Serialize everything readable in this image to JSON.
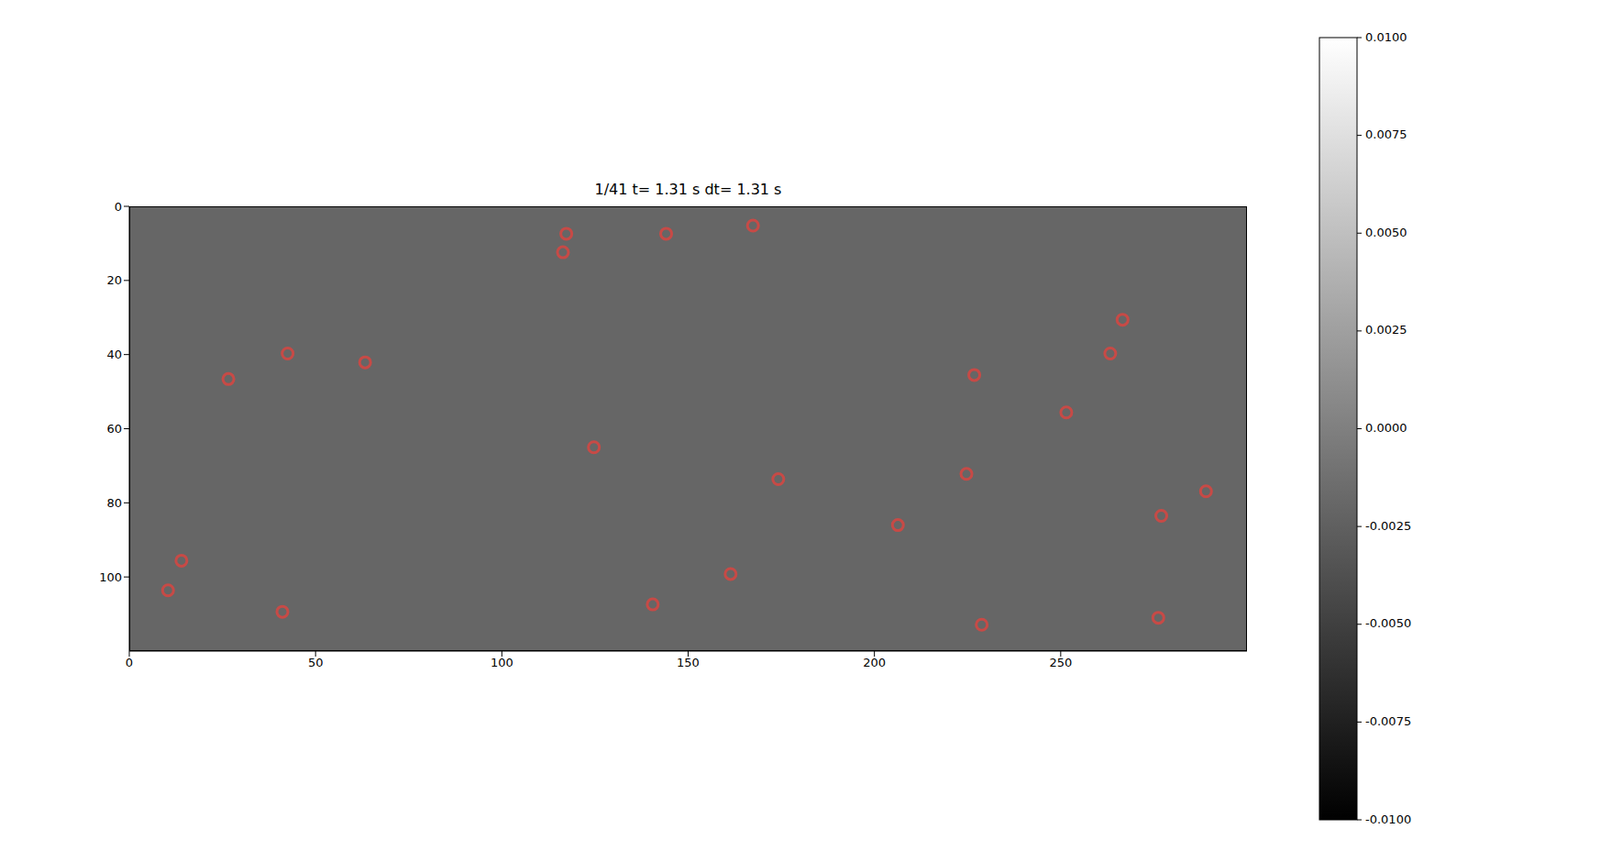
{
  "chart_data": {
    "type": "scatter",
    "title": "1/41  t= 1.31 s dt= 1.31 s",
    "xlim": [
      0,
      300
    ],
    "xticks": [
      0,
      50,
      100,
      150,
      200,
      250
    ],
    "ylim": [
      0,
      120
    ],
    "yticks": [
      0,
      20,
      40,
      60,
      80,
      100
    ],
    "grid": false,
    "marker": "o",
    "color": "#e8423c",
    "image_value": -0.002,
    "colorbar": {
      "range": [
        -0.01,
        0.01
      ],
      "ticks": [
        {
          "value": -0.01,
          "label": "-0.0100"
        },
        {
          "value": -0.0075,
          "label": "-0.0075"
        },
        {
          "value": -0.005,
          "label": "-0.0050"
        },
        {
          "value": -0.0025,
          "label": "-0.0025"
        },
        {
          "value": 0,
          "label": "0.0000"
        },
        {
          "value": 0.0025,
          "label": "0.0025"
        },
        {
          "value": 0.005,
          "label": "0.0050"
        },
        {
          "value": 0.0075,
          "label": "0.0075"
        },
        {
          "value": 0.01,
          "label": "0.0100"
        }
      ]
    },
    "x": [
      117.3,
      116.4,
      144.1,
      167.4,
      266.6,
      263.3,
      42.5,
      63.3,
      26.6,
      226.8,
      251.5,
      124.7,
      174.2,
      224.7,
      289.0,
      277.0,
      206.3,
      14.0,
      10.4,
      161.4,
      41.1,
      140.5,
      276.2,
      228.8
    ],
    "values": [
      7.4,
      12.4,
      7.4,
      5.2,
      30.6,
      39.7,
      39.7,
      42.1,
      46.6,
      45.5,
      55.6,
      65.0,
      73.6,
      72.2,
      76.9,
      83.5,
      86.0,
      95.6,
      103.6,
      99.2,
      109.4,
      107.4,
      111.0,
      112.9
    ]
  }
}
